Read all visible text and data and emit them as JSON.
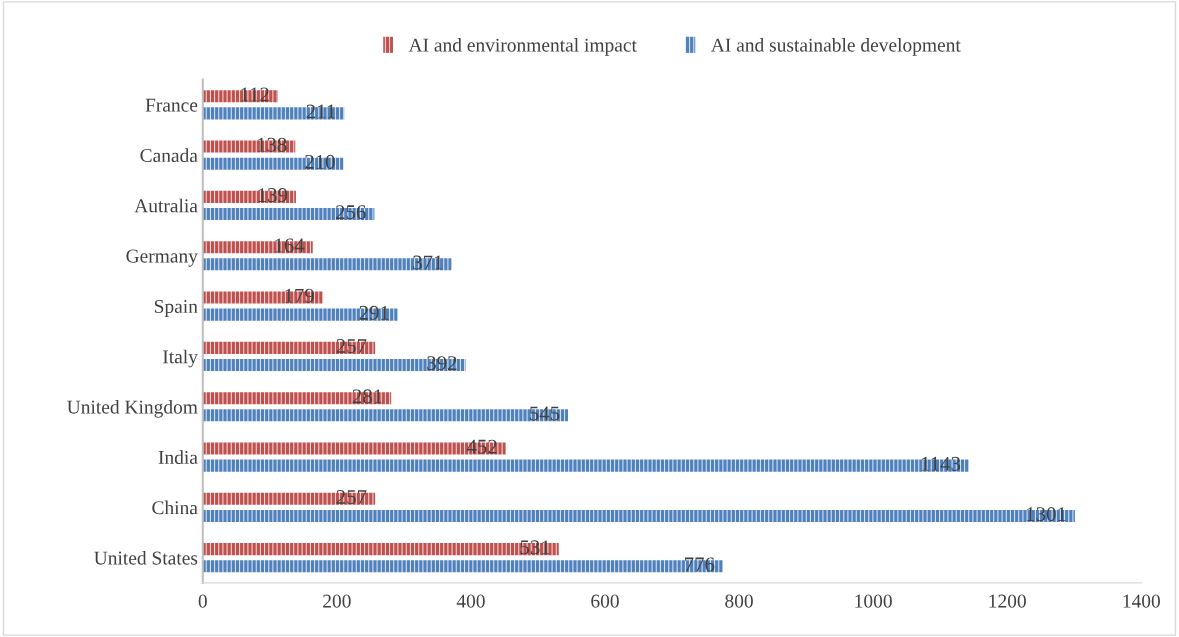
{
  "chart_data": {
    "type": "bar",
    "orientation": "horizontal",
    "categories": [
      "France",
      "Canada",
      "Autralia",
      "Germany",
      "Spain",
      "Italy",
      "United Kingdom",
      "India",
      "China",
      "United States"
    ],
    "series": [
      {
        "name": "AI and environmental impact",
        "color": "#c0504d",
        "values": [
          112,
          138,
          139,
          164,
          179,
          257,
          281,
          452,
          257,
          531
        ]
      },
      {
        "name": "AI and sustainable development",
        "color": "#4f81bd",
        "values": [
          211,
          210,
          256,
          371,
          291,
          392,
          545,
          1143,
          1301,
          776
        ]
      }
    ],
    "xlim": [
      0,
      1400
    ],
    "xticks": [
      0,
      200,
      400,
      600,
      800,
      1000,
      1200,
      1400
    ],
    "data_labels": true,
    "legend": "top",
    "grid": false
  }
}
